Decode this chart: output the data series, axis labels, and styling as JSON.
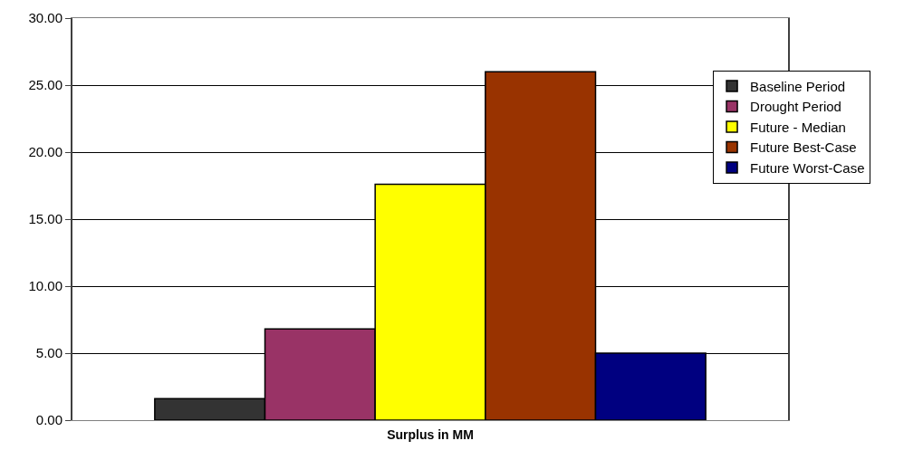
{
  "chart_data": {
    "type": "bar",
    "xlabel": "Surplus in MM",
    "categories": [
      null
    ],
    "series": [
      {
        "name": "Baseline Period",
        "color": "#333333",
        "values": [
          1.6
        ]
      },
      {
        "name": "Drought Period",
        "color": "#993366",
        "values": [
          6.8
        ]
      },
      {
        "name": "Future - Median",
        "color": "#ffff00",
        "values": [
          17.6
        ]
      },
      {
        "name": "Future Best-Case",
        "color": "#993300",
        "values": [
          26.0
        ]
      },
      {
        "name": "Future Worst-Case",
        "color": "#000080",
        "values": [
          5.0
        ]
      }
    ],
    "ylim": [
      0,
      30
    ],
    "yticks": [
      {
        "value": 0,
        "label": "0.00"
      },
      {
        "value": 5,
        "label": "5.00"
      },
      {
        "value": 10,
        "label": "10.00"
      },
      {
        "value": 15,
        "label": "15.00"
      },
      {
        "value": 20,
        "label": "20.00"
      },
      {
        "value": 25,
        "label": "25.00"
      },
      {
        "value": 30,
        "label": "30.00"
      }
    ],
    "grid": "y",
    "legend": "top right"
  }
}
